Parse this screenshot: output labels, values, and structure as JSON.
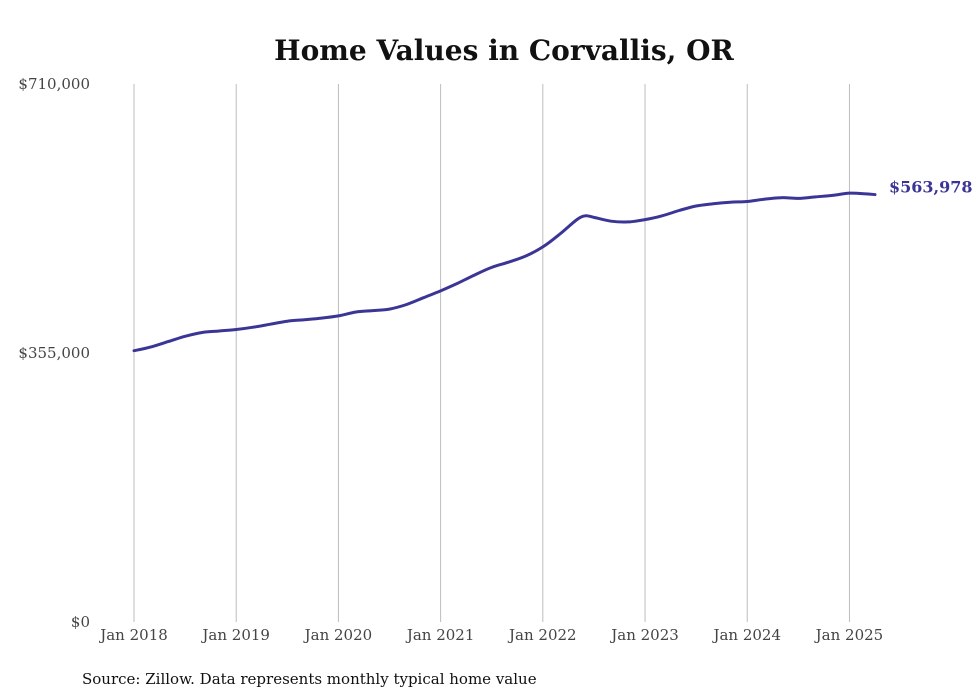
{
  "chart_data": {
    "type": "line",
    "title": "Home Values in Corvallis, OR",
    "source": "Source: Zillow. Data represents monthly typical home value",
    "ylim": [
      0,
      710000
    ],
    "yticks": [
      {
        "value": 0,
        "label": "$0"
      },
      {
        "value": 355000,
        "label": "$355,000"
      },
      {
        "value": 710000,
        "label": "$710,000"
      }
    ],
    "xlim": [
      "2018-01",
      "2025-04"
    ],
    "xticks": [
      {
        "date": "2018-01",
        "label": "Jan 2018"
      },
      {
        "date": "2019-01",
        "label": "Jan 2019"
      },
      {
        "date": "2020-01",
        "label": "Jan 2020"
      },
      {
        "date": "2021-01",
        "label": "Jan 2021"
      },
      {
        "date": "2022-01",
        "label": "Jan 2022"
      },
      {
        "date": "2023-01",
        "label": "Jan 2023"
      },
      {
        "date": "2024-01",
        "label": "Jan 2024"
      },
      {
        "date": "2025-01",
        "label": "Jan 2025"
      }
    ],
    "grid": {
      "vertical": true,
      "horizontal": false
    },
    "line_color": "#3b3596",
    "end_label": "$563,978",
    "series": [
      {
        "x": [
          "2018-01",
          "2018-03",
          "2018-05",
          "2018-07",
          "2018-09",
          "2018-11",
          "2019-01",
          "2019-03",
          "2019-05",
          "2019-07",
          "2019-09",
          "2019-11",
          "2020-01",
          "2020-03",
          "2020-05",
          "2020-07",
          "2020-09",
          "2020-11",
          "2021-01",
          "2021-03",
          "2021-05",
          "2021-07",
          "2021-09",
          "2021-11",
          "2022-01",
          "2022-03",
          "2022-05",
          "2022-06",
          "2022-07",
          "2022-09",
          "2022-11",
          "2023-01",
          "2023-03",
          "2023-05",
          "2023-07",
          "2023-09",
          "2023-11",
          "2024-01",
          "2024-03",
          "2024-05",
          "2024-07",
          "2024-09",
          "2024-11",
          "2025-01",
          "2025-03",
          "2025-04"
        ],
        "values": [
          358000,
          363000,
          370000,
          377000,
          382000,
          384000,
          386000,
          389000,
          393000,
          397000,
          399000,
          401000,
          404000,
          409000,
          411000,
          413000,
          419000,
          428000,
          437000,
          447000,
          458000,
          468000,
          475000,
          483000,
          495000,
          512000,
          531000,
          536000,
          534000,
          529000,
          528000,
          531000,
          536000,
          543000,
          549000,
          552000,
          554000,
          555000,
          558000,
          560000,
          559000,
          561000,
          563000,
          566000,
          565000,
          563978
        ]
      }
    ]
  }
}
